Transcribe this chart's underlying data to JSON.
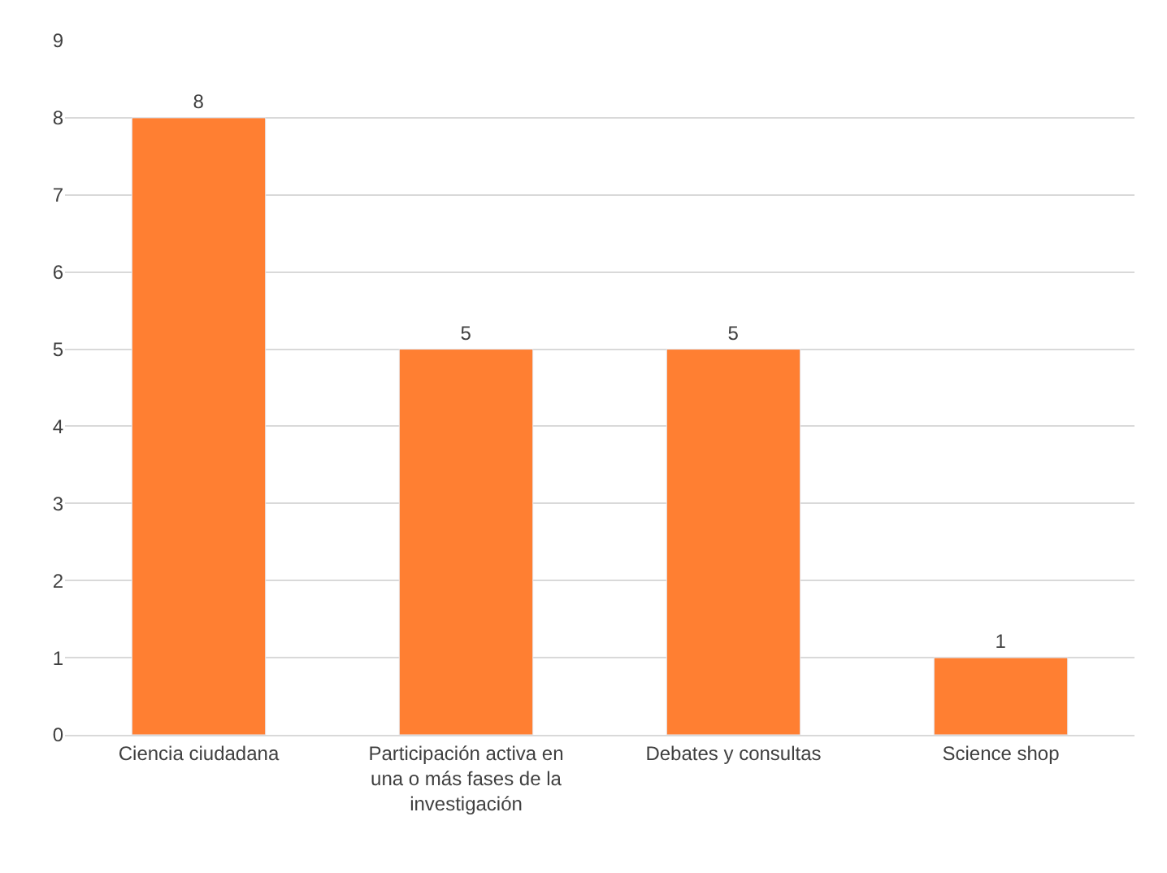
{
  "chart_data": {
    "type": "bar",
    "categories": [
      "Ciencia ciudadana",
      "Participación activa en una o más fases de la investigación",
      "Debates y consultas",
      "Science shop"
    ],
    "values": [
      8,
      5,
      5,
      1
    ],
    "color": "#ff7f32",
    "ylim": [
      0,
      9
    ],
    "yticks": [
      0,
      1,
      2,
      3,
      4,
      5,
      6,
      7,
      8,
      9
    ],
    "grid": "y",
    "data_labels": true,
    "legend": false
  }
}
